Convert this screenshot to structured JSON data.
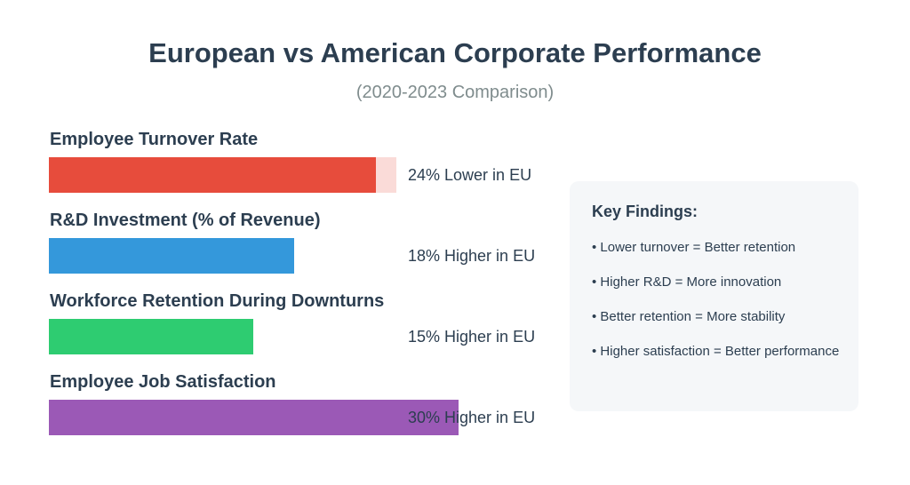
{
  "title": "European vs American Corporate Performance",
  "subtitle": "(2020-2023 Comparison)",
  "colors": {
    "turnover": "#e74c3c",
    "turnover_track": "#fadbd8",
    "rnd": "#3498db",
    "retention": "#2ecc71",
    "satisfaction": "#9b59b6",
    "panel_background": "#f5f7f9"
  },
  "chart_data": {
    "type": "bar",
    "orientation": "horizontal",
    "title": "European vs American Corporate Performance",
    "subtitle": "(2020-2023 Comparison)",
    "categories": [
      "Employee Turnover Rate",
      "R&D Investment (% of Revenue)",
      "Workforce Retention During Downturns",
      "Employee Job Satisfaction"
    ],
    "values": [
      24,
      18,
      15,
      30
    ],
    "value_labels": [
      "24% Lower in EU",
      "18% Higher in EU",
      "15% Higher in EU",
      "30% Higher in EU"
    ],
    "directions": [
      "lower",
      "higher",
      "higher",
      "higher"
    ],
    "grid": false,
    "legend": "none"
  },
  "findings": {
    "title": "Key Findings:",
    "items": [
      "• Lower turnover = Better retention",
      "• Higher R&D = More innovation",
      "• Better retention = More stability",
      "• Higher satisfaction = Better performance"
    ]
  }
}
